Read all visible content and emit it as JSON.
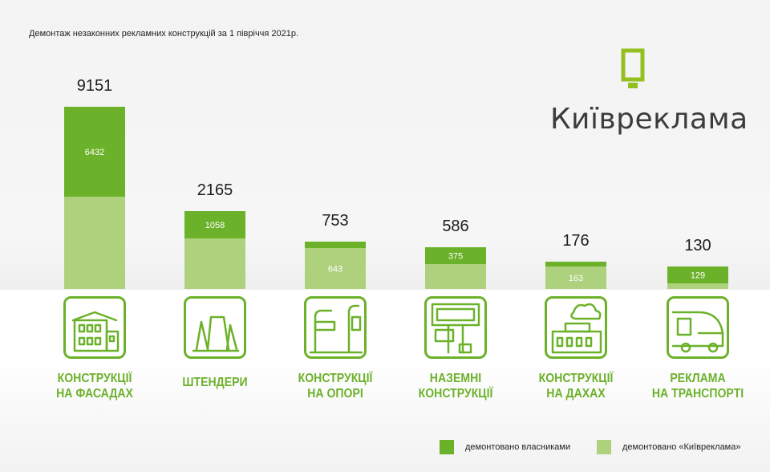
{
  "title": "Демонтаж незаконних рекламних конструкцій за 1 півріччя 2021р.",
  "logo": {
    "text": "Київреклама",
    "icon": "billboard-icon"
  },
  "colors": {
    "owners": "#6cb12a",
    "kyivreklama": "#aed17d",
    "icon_stroke": "#6cb12a"
  },
  "legend": {
    "owners": "демонтовано власниками",
    "kyivreklama": "демонтовано «Київреклама»"
  },
  "chart_data": {
    "type": "bar",
    "stacked": true,
    "title": "Демонтаж незаконних рекламних конструкцій за 1 півріччя 2021р.",
    "categories": [
      "Конструкції на фасадах",
      "Штендери",
      "Конструкції на опорі",
      "Наземні конструкції",
      "Конструкції на дахах",
      "Реклама на транспорті"
    ],
    "icons": [
      "building-icon",
      "sandwich-board-icon",
      "street-pole-icon",
      "billboard-icon",
      "rooftop-icon",
      "bus-icon"
    ],
    "totals": [
      9151,
      2165,
      753,
      586,
      176,
      130
    ],
    "series": [
      {
        "name": "демонтовано власниками",
        "values": [
          6432,
          1058,
          110,
          375,
          13,
          129
        ]
      },
      {
        "name": "демонтовано «Київреклама»",
        "values": [
          2719,
          1107,
          643,
          211,
          163,
          1
        ]
      }
    ],
    "labels_shown": [
      {
        "series": 0,
        "values": [
          6432,
          1058,
          null,
          375,
          null,
          129
        ]
      },
      {
        "series": 1,
        "values": [
          null,
          null,
          643,
          null,
          163,
          null
        ]
      }
    ],
    "legend_position": "bottom-right",
    "grid": false
  }
}
